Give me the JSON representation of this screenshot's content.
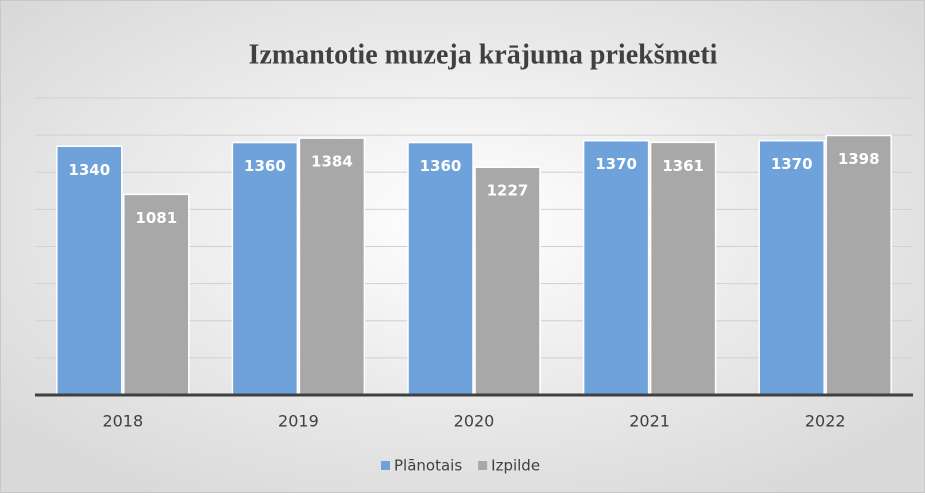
{
  "chart_data": {
    "type": "bar",
    "title": "Izmantotie muzeja krājuma priekšmeti",
    "categories": [
      "2018",
      "2019",
      "2020",
      "2021",
      "2022"
    ],
    "series": [
      {
        "name": "Plānotais",
        "color": "#6fa2da",
        "values": [
          1340,
          1360,
          1360,
          1370,
          1370
        ]
      },
      {
        "name": "Izpilde",
        "color": "#a8a8a8",
        "values": [
          1081,
          1384,
          1227,
          1361,
          1398
        ]
      }
    ],
    "ylim": [
      0,
      1600
    ],
    "yticks": [
      0,
      200,
      400,
      600,
      800,
      1000,
      1200,
      1400,
      1600
    ],
    "grid": true
  }
}
